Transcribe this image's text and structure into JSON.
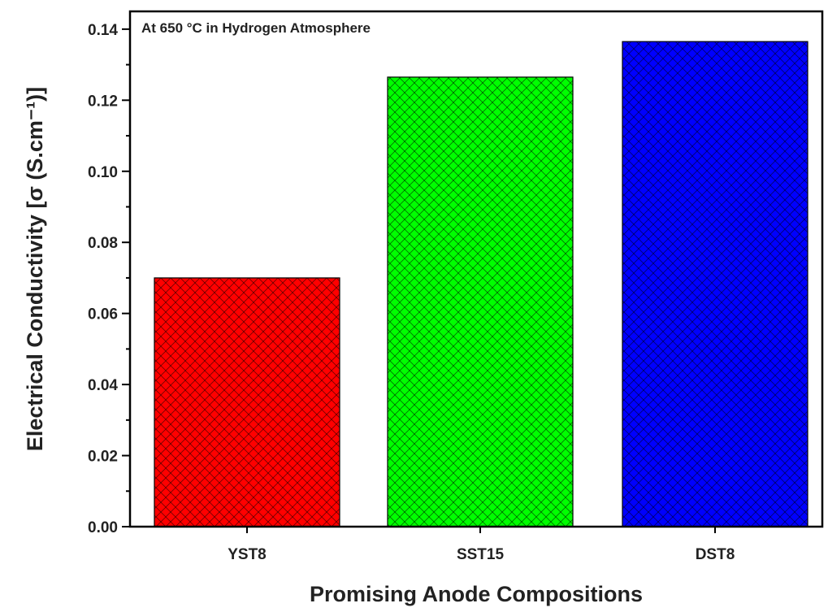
{
  "chart_data": {
    "type": "bar",
    "categories": [
      "YST8",
      "SST15",
      "DST8"
    ],
    "values": [
      0.07,
      0.1265,
      0.1365
    ],
    "colors": [
      "#ff0000",
      "#00ff00",
      "#0000ff"
    ],
    "pattern": "crosshatch",
    "annotation": "At 650 °C in Hydrogen Atmosphere",
    "xlabel": "Promising Anode Compositions",
    "ylabel": "Electrical Conductivity [σ (S.cm⁻¹)]",
    "ylim": [
      0,
      0.145
    ],
    "yticks": [
      0.0,
      0.02,
      0.04,
      0.06,
      0.08,
      0.1,
      0.12,
      0.14
    ],
    "ytick_labels": [
      "0.00",
      "0.02",
      "0.04",
      "0.06",
      "0.08",
      "0.10",
      "0.12",
      "0.14"
    ],
    "grid": false
  }
}
